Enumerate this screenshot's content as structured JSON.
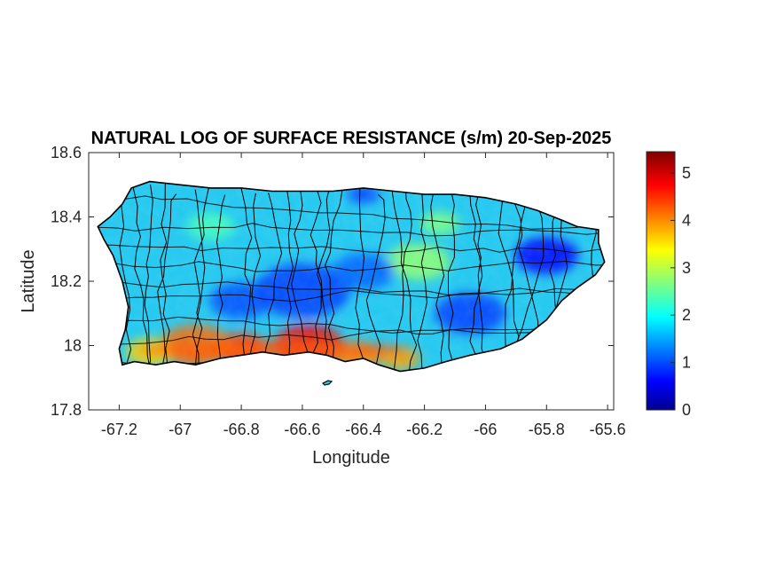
{
  "figure": {
    "title": "NATURAL LOG OF SURFACE RESISTANCE (s/m) 20-Sep-2025"
  },
  "chart_data": {
    "type": "heatmap",
    "title": "NATURAL LOG OF SURFACE RESISTANCE (s/m) 20-Sep-2025",
    "xlabel": "Longitude",
    "ylabel": "Latitude",
    "xlim": [
      -67.3,
      -65.58
    ],
    "ylim": [
      17.8,
      18.6
    ],
    "xticks": [
      -67.2,
      -67,
      -66.8,
      -66.6,
      -66.4,
      -66.2,
      -66,
      -65.8,
      -65.6
    ],
    "xtick_labels": [
      "-67.2",
      "-67",
      "-66.8",
      "-66.6",
      "-66.4",
      "-66.2",
      "-66",
      "-65.8",
      "-65.6"
    ],
    "yticks": [
      17.8,
      18.0,
      18.2,
      18.4,
      18.6
    ],
    "ytick_labels": [
      "17.8",
      "18",
      "18.2",
      "18.4",
      "18.6"
    ],
    "colorbar": {
      "colormap": "jet",
      "range": [
        0,
        5.45
      ],
      "ticks": [
        0,
        1,
        2,
        3,
        4,
        5
      ],
      "tick_labels": [
        "0",
        "1",
        "2",
        "3",
        "4",
        "5"
      ]
    },
    "island_outline": [
      [
        -67.27,
        18.37
      ],
      [
        -67.23,
        18.4
      ],
      [
        -67.19,
        18.44
      ],
      [
        -67.16,
        18.49
      ],
      [
        -67.1,
        18.51
      ],
      [
        -67.0,
        18.5
      ],
      [
        -66.9,
        18.49
      ],
      [
        -66.8,
        18.49
      ],
      [
        -66.7,
        18.48
      ],
      [
        -66.6,
        18.48
      ],
      [
        -66.5,
        18.48
      ],
      [
        -66.4,
        18.49
      ],
      [
        -66.3,
        18.48
      ],
      [
        -66.2,
        18.47
      ],
      [
        -66.1,
        18.47
      ],
      [
        -66.0,
        18.46
      ],
      [
        -65.9,
        18.44
      ],
      [
        -65.83,
        18.42
      ],
      [
        -65.75,
        18.39
      ],
      [
        -65.7,
        18.37
      ],
      [
        -65.63,
        18.36
      ],
      [
        -65.63,
        18.32
      ],
      [
        -65.61,
        18.26
      ],
      [
        -65.64,
        18.22
      ],
      [
        -65.7,
        18.18
      ],
      [
        -65.75,
        18.14
      ],
      [
        -65.8,
        18.08
      ],
      [
        -65.88,
        18.02
      ],
      [
        -65.95,
        17.99
      ],
      [
        -66.05,
        17.97
      ],
      [
        -66.13,
        17.95
      ],
      [
        -66.2,
        17.93
      ],
      [
        -66.28,
        17.92
      ],
      [
        -66.35,
        17.94
      ],
      [
        -66.4,
        17.96
      ],
      [
        -66.46,
        17.95
      ],
      [
        -66.52,
        17.97
      ],
      [
        -66.58,
        17.98
      ],
      [
        -66.66,
        17.97
      ],
      [
        -66.73,
        17.98
      ],
      [
        -66.8,
        17.97
      ],
      [
        -66.87,
        17.96
      ],
      [
        -66.95,
        17.94
      ],
      [
        -67.02,
        17.95
      ],
      [
        -67.08,
        17.94
      ],
      [
        -67.15,
        17.95
      ],
      [
        -67.19,
        17.94
      ],
      [
        -67.2,
        17.99
      ],
      [
        -67.18,
        18.05
      ],
      [
        -67.17,
        18.12
      ],
      [
        -67.19,
        18.2
      ],
      [
        -67.22,
        18.28
      ],
      [
        -67.25,
        18.33
      ],
      [
        -67.27,
        18.37
      ]
    ],
    "dry_zones": [
      {
        "lon": -66.58,
        "lat": 18.0,
        "value": 4.8,
        "radius": 0.09
      },
      {
        "lon": -66.8,
        "lat": 17.99,
        "value": 4.5,
        "radius": 0.07
      },
      {
        "lon": -66.95,
        "lat": 18.0,
        "value": 4.2,
        "radius": 0.09
      },
      {
        "lon": -66.42,
        "lat": 17.97,
        "value": 4.0,
        "radius": 0.06
      },
      {
        "lon": -66.28,
        "lat": 17.96,
        "value": 3.9,
        "radius": 0.05
      },
      {
        "lon": -67.1,
        "lat": 17.98,
        "value": 3.6,
        "radius": 0.06
      }
    ],
    "wet_zones": [
      {
        "lon": -65.8,
        "lat": 18.28,
        "value": 0.7,
        "radius": 0.08
      },
      {
        "lon": -66.05,
        "lat": 18.1,
        "value": 1.0,
        "radius": 0.09
      },
      {
        "lon": -66.6,
        "lat": 18.17,
        "value": 1.0,
        "radius": 0.12
      },
      {
        "lon": -66.8,
        "lat": 18.14,
        "value": 1.1,
        "radius": 0.08
      },
      {
        "lon": -66.4,
        "lat": 18.23,
        "value": 1.2,
        "radius": 0.08
      },
      {
        "lon": -66.4,
        "lat": 18.47,
        "value": 1.0,
        "radius": 0.04
      }
    ],
    "moderate_zones": [
      {
        "lon": -66.22,
        "lat": 18.26,
        "value": 2.8,
        "radius": 0.08
      },
      {
        "lon": -66.15,
        "lat": 18.38,
        "value": 2.7,
        "radius": 0.05
      },
      {
        "lon": -66.9,
        "lat": 18.37,
        "value": 2.4,
        "radius": 0.06
      }
    ]
  }
}
